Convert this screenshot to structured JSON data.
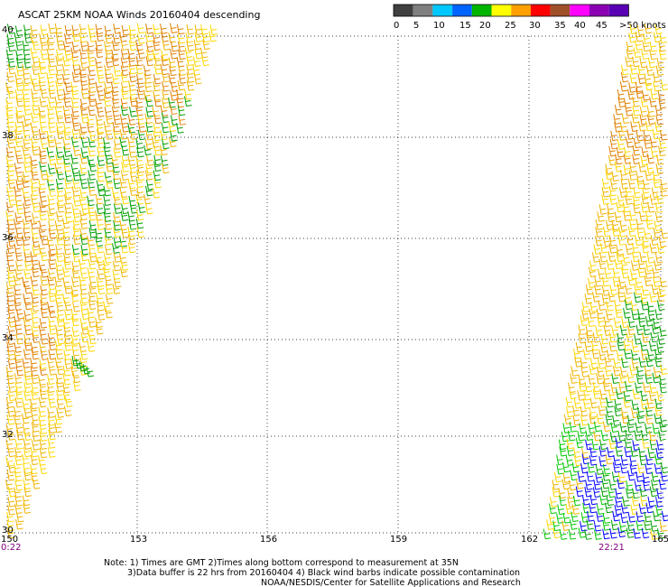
{
  "title": "ASCAT 25KM NOAA Winds 20160404 descending",
  "legend": {
    "ticks": [
      "0",
      "5",
      "10",
      "15",
      "20",
      "25",
      "30",
      "35",
      "40",
      "45"
    ],
    "last_label": ">50 knots",
    "colors": [
      "#404040",
      "#808080",
      "#00c8ff",
      "#0064ff",
      "#00b400",
      "#ffff00",
      "#ffa000",
      "#ff0000",
      "#a05028",
      "#ff00ff",
      "#8c00b4",
      "#5a00b4"
    ]
  },
  "axes": {
    "lat_labels": [
      "40",
      "38",
      "36",
      "34",
      "32",
      "30"
    ],
    "lon_labels": [
      "150",
      "153",
      "156",
      "159",
      "162",
      "165"
    ]
  },
  "times": {
    "left": "0:22",
    "right": "22:21"
  },
  "notes": {
    "line1": "Note: 1) Times are GMT 2)Times along bottom correspond to measurement at 35N",
    "line2": "3)Data buffer is 22 hrs from 20160404 4) Black wind barbs indicate possible contamination",
    "line3": "NOAA/NESDIS/Center for Satellite Applications and Research"
  },
  "barb_colors": {
    "calm_green": "#00a000",
    "light_green": "#00c800",
    "blue": "#0000ff",
    "yellow": "#ffd700",
    "light_orange": "#f0b400",
    "orange": "#e08000"
  }
}
